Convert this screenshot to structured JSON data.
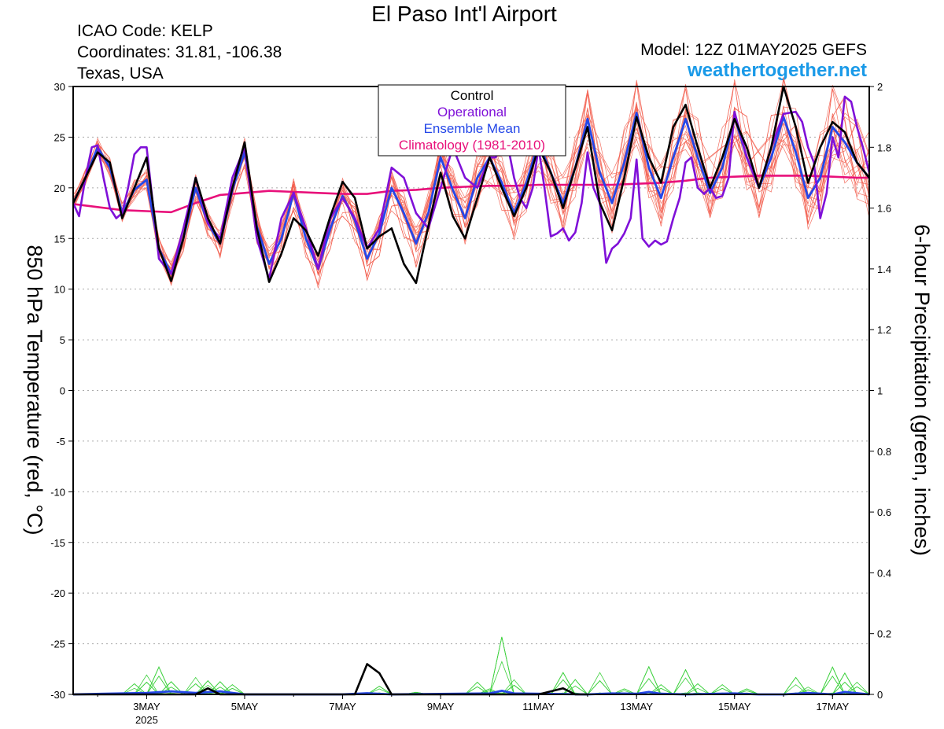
{
  "header": {
    "title": "El Paso Int'l Airport",
    "icao": "ICAO Code: KELP",
    "coordinates": "Coordinates: 31.81, -106.38",
    "region": "Texas, USA",
    "model": "Model: 12Z 01MAY2025 GEFS",
    "site": "weathertogether.net"
  },
  "colors": {
    "members": "#f25a4a",
    "control": "#000000",
    "operational": "#7f10d8",
    "mean": "#2447e8",
    "climatology": "#e8107a",
    "precip_members": "#3fd13f",
    "site": "#1a9ae8"
  },
  "chart_data": {
    "type": "line",
    "title": "El Paso Int'l Airport",
    "ylabel": "850 hPa Temperature (red, °C)",
    "y2label": "6-hour Precipitation (green, inches)",
    "ylim": [
      -30,
      30
    ],
    "y2lim": [
      0,
      2
    ],
    "yticks": [
      -30,
      -25,
      -20,
      -15,
      -10,
      -5,
      0,
      5,
      10,
      15,
      20,
      25,
      30
    ],
    "y2ticks": [
      0,
      0.2,
      0.4,
      0.6,
      0.8,
      1,
      1.2,
      1.4,
      1.6,
      1.8,
      2
    ],
    "xlim": [
      1.5,
      17.75
    ],
    "xticks": [
      {
        "x": 3,
        "label": "3MAY",
        "sub": "2025"
      },
      {
        "x": 5,
        "label": "5MAY",
        "sub": ""
      },
      {
        "x": 7,
        "label": "7MAY",
        "sub": ""
      },
      {
        "x": 9,
        "label": "9MAY",
        "sub": ""
      },
      {
        "x": 11,
        "label": "11MAY",
        "sub": ""
      },
      {
        "x": 13,
        "label": "13MAY",
        "sub": ""
      },
      {
        "x": 15,
        "label": "15MAY",
        "sub": ""
      },
      {
        "x": 17,
        "label": "17MAY",
        "sub": ""
      }
    ],
    "grid": true,
    "legend_position": "top-center",
    "legend": [
      {
        "label": "Control",
        "color": "#000000"
      },
      {
        "label": "Operational",
        "color": "#7f10d8"
      },
      {
        "label": "Ensemble Mean",
        "color": "#2447e8"
      },
      {
        "label": "Climatology (1981-2010)",
        "color": "#e8107a"
      }
    ],
    "series": [
      {
        "name": "Control",
        "axis": "temp",
        "x": [
          1.5,
          1.75,
          2,
          2.25,
          2.5,
          2.75,
          3,
          3.25,
          3.5,
          3.75,
          4,
          4.25,
          4.5,
          4.75,
          5,
          5.25,
          5.5,
          5.75,
          6,
          6.25,
          6.5,
          6.75,
          7,
          7.25,
          7.5,
          7.75,
          8,
          8.25,
          8.5,
          8.75,
          9,
          9.25,
          9.5,
          9.75,
          10,
          10.25,
          10.5,
          10.75,
          11,
          11.25,
          11.5,
          11.75,
          12,
          12.25,
          12.5,
          12.75,
          13,
          13.25,
          13.5,
          13.75,
          14,
          14.25,
          14.5,
          14.75,
          15,
          15.25,
          15.5,
          15.75,
          16,
          16.25,
          16.5,
          16.75,
          17,
          17.25,
          17.5,
          17.75
        ],
        "values": [
          18.5,
          21,
          23.5,
          22.5,
          17,
          20,
          23,
          14,
          10.8,
          15,
          21,
          17,
          14.5,
          20,
          24.5,
          16,
          10.7,
          13.5,
          17,
          15.8,
          13.3,
          17.2,
          20.6,
          19,
          14,
          15.2,
          16,
          12.5,
          10.6,
          16.2,
          21.5,
          17.2,
          15,
          19,
          23,
          20,
          17.2,
          20,
          24,
          21.5,
          18,
          22,
          26,
          18.5,
          15.8,
          21,
          27,
          23,
          20.5,
          26,
          28.2,
          24,
          20,
          23,
          26.8,
          24,
          20,
          24,
          30,
          26,
          20.5,
          24,
          26.5,
          25.5,
          22.5,
          21
        ]
      },
      {
        "name": "Operational",
        "axis": "temp",
        "x": [
          1.5,
          1.62,
          1.75,
          1.88,
          2,
          2.12,
          2.25,
          2.38,
          2.5,
          2.62,
          2.75,
          2.88,
          3,
          3.25,
          3.5,
          3.75,
          4,
          4.25,
          4.5,
          4.75,
          5,
          5.25,
          5.5,
          5.75,
          6,
          6.25,
          6.5,
          6.75,
          7,
          7.25,
          7.5,
          7.75,
          8,
          8.25,
          8.5,
          8.75,
          9,
          9.25,
          9.5,
          9.75,
          10,
          10.12,
          10.25,
          10.38,
          10.5,
          10.62,
          10.75,
          10.88,
          11,
          11.12,
          11.25,
          11.38,
          11.5,
          11.62,
          11.75,
          11.88,
          12,
          12.12,
          12.25,
          12.38,
          12.5,
          12.62,
          12.75,
          12.88,
          13,
          13.12,
          13.25,
          13.38,
          13.5,
          13.62,
          13.75,
          13.88,
          14,
          14.12,
          14.25,
          14.38,
          14.5,
          14.62,
          14.75,
          14.88,
          15,
          15.25,
          15.5,
          15.75,
          16,
          16.12,
          16.25,
          16.38,
          16.5,
          16.62,
          16.75,
          16.88,
          17,
          17.12,
          17.25,
          17.38,
          17.5,
          17.62,
          17.75
        ],
        "values": [
          18.5,
          17.2,
          21,
          24,
          24.2,
          21,
          18,
          17,
          17.5,
          20,
          23.3,
          24,
          24,
          13,
          11.5,
          16,
          21,
          16.5,
          15,
          21,
          24,
          15,
          11,
          17,
          19.5,
          16,
          12,
          17,
          19,
          17,
          14,
          16,
          22,
          21,
          17.5,
          16,
          20,
          24,
          21,
          20,
          23,
          23,
          24,
          24,
          21,
          19,
          18,
          20,
          24,
          20,
          15.2,
          15.5,
          16,
          14.8,
          15.6,
          18.5,
          23.5,
          20,
          18.5,
          12.6,
          14,
          14.5,
          15.5,
          17,
          22.8,
          15,
          14.2,
          14.8,
          14.4,
          14.7,
          17,
          19,
          22.5,
          23,
          20,
          19.4,
          20,
          19,
          19.2,
          21,
          27.5,
          23,
          20,
          24,
          27.3,
          27.4,
          27.5,
          26.5,
          24,
          22.5,
          17,
          19.5,
          25,
          23,
          29,
          28.5,
          26,
          24,
          21.5
        ]
      },
      {
        "name": "Ensemble Mean",
        "axis": "temp",
        "x": [
          1.5,
          1.75,
          2,
          2.25,
          2.5,
          2.75,
          3,
          3.25,
          3.5,
          3.75,
          4,
          4.25,
          4.5,
          4.75,
          5,
          5.25,
          5.5,
          5.75,
          6,
          6.25,
          6.5,
          6.75,
          7,
          7.25,
          7.5,
          7.75,
          8,
          8.25,
          8.5,
          8.75,
          9,
          9.25,
          9.5,
          9.75,
          10,
          10.25,
          10.5,
          10.75,
          11,
          11.25,
          11.5,
          11.75,
          12,
          12.25,
          12.5,
          12.75,
          13,
          13.25,
          13.5,
          13.75,
          14,
          14.25,
          14.5,
          14.75,
          15,
          15.25,
          15.5,
          15.75,
          16,
          16.25,
          16.5,
          16.75,
          17,
          17.25,
          17.5,
          17.75
        ],
        "values": [
          18.5,
          21,
          24,
          22,
          17.5,
          19.8,
          20.8,
          14,
          11.5,
          15,
          20,
          16.5,
          14.5,
          19.8,
          23.5,
          16.2,
          12.5,
          15,
          19.5,
          15,
          12,
          16,
          19.2,
          16.8,
          13,
          15.5,
          20,
          17.5,
          14.5,
          17.5,
          23,
          19.8,
          17,
          21,
          23,
          20.5,
          17.5,
          20.5,
          24.5,
          21.5,
          18.5,
          22,
          26.8,
          21.5,
          18.5,
          22.5,
          27.4,
          22,
          19,
          23,
          26.8,
          23,
          19.5,
          22,
          27,
          23,
          20,
          23,
          27,
          23.5,
          19,
          21,
          26,
          24.5,
          22.5,
          21
        ]
      },
      {
        "name": "Climatology (1981-2010)",
        "axis": "temp",
        "x": [
          1.5,
          2,
          2.5,
          3,
          3.5,
          4,
          4.5,
          5,
          5.5,
          6,
          6.5,
          7,
          7.5,
          8,
          8.5,
          9,
          9.5,
          10,
          10.5,
          11,
          11.5,
          12,
          12.5,
          13,
          13.5,
          14,
          14.5,
          15,
          15.5,
          16,
          16.5,
          17,
          17.5,
          17.75
        ],
        "values": [
          18.4,
          18.1,
          17.8,
          17.7,
          17.6,
          18.5,
          19.3,
          19.5,
          19.7,
          19.6,
          19.5,
          19.4,
          19.4,
          19.7,
          19.8,
          20,
          20.1,
          20.2,
          20.2,
          20.3,
          20.3,
          20.3,
          20.3,
          20.4,
          20.5,
          20.7,
          21,
          21.1,
          21.2,
          21.2,
          21.2,
          21.1,
          21,
          21
        ]
      },
      {
        "name": "Control",
        "axis": "precip",
        "x": [
          1.5,
          4,
          4.25,
          4.5,
          7.25,
          7.5,
          7.75,
          8,
          11,
          11.5,
          11.75,
          12
        ],
        "values": [
          0,
          0,
          0.02,
          0,
          0,
          0.1,
          0.07,
          0,
          0,
          0.02,
          0,
          0
        ]
      },
      {
        "name": "Ensemble Mean",
        "axis": "precip",
        "x": [
          1.5,
          3,
          3.5,
          4,
          4.5,
          5,
          7,
          7.5,
          8,
          10,
          10.25,
          10.5,
          12,
          12.5,
          13,
          13.25,
          13.5,
          14,
          15,
          15.5,
          16,
          16.5,
          17,
          17.25,
          17.75
        ],
        "values": [
          0,
          0.005,
          0.01,
          0.005,
          0.01,
          0,
          0,
          0.004,
          0,
          0.003,
          0.012,
          0.003,
          0,
          0.003,
          0.002,
          0.008,
          0.002,
          0,
          0.003,
          0,
          0,
          0.005,
          0,
          0.008,
          0
        ]
      }
    ]
  }
}
